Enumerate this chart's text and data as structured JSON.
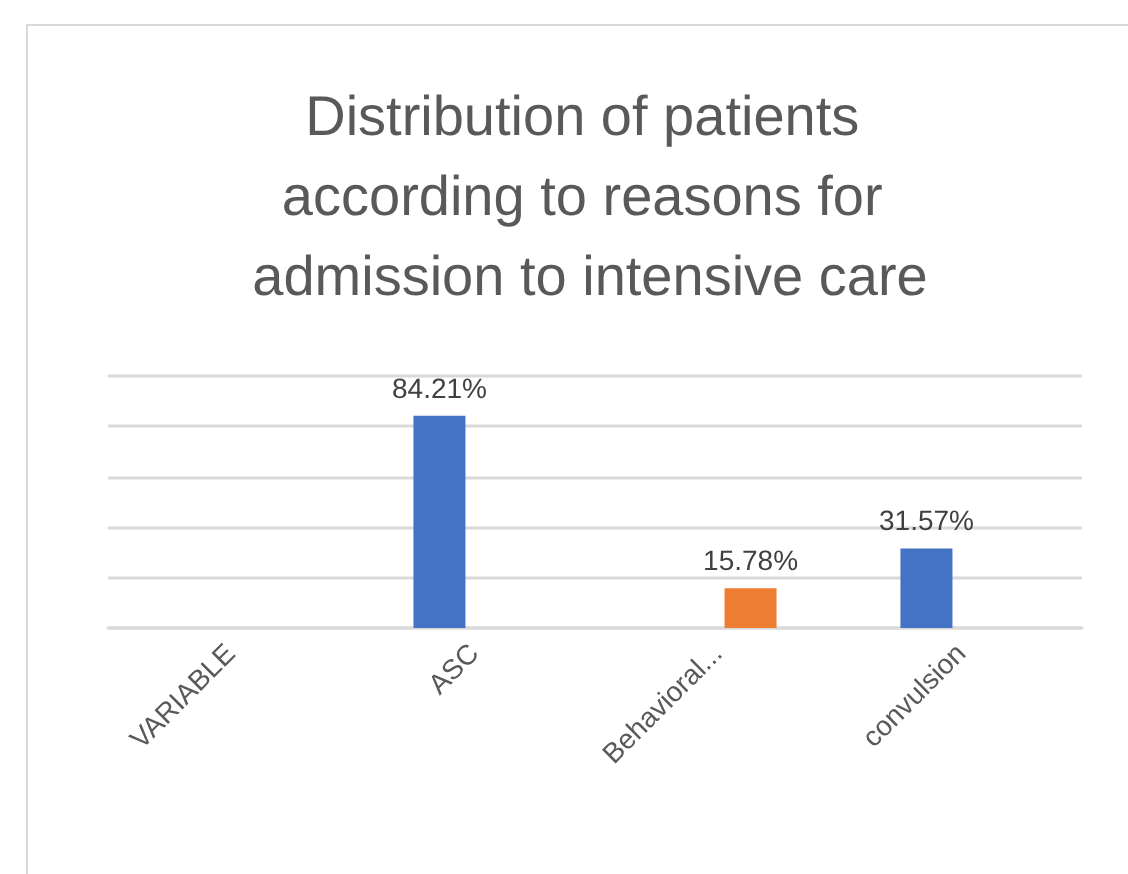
{
  "chart_data": {
    "type": "bar",
    "title": "Distribution of patients according to reasons for admission to intensive care",
    "categories": [
      "VARIABLE",
      "ASC",
      "Behavioral...",
      "convulsion"
    ],
    "series": [
      {
        "color": "#4472c4",
        "values": [
          null,
          84.21,
          null,
          31.57
        ],
        "value_labels": [
          null,
          "84.21%",
          null,
          "31.57%"
        ]
      },
      {
        "color": "#ed7d31",
        "values": [
          null,
          null,
          15.78,
          null
        ],
        "value_labels": [
          null,
          null,
          "15.78%",
          null
        ]
      }
    ],
    "ylim": [
      0,
      100
    ],
    "yticks": [
      {
        "value": 0,
        "label": null
      },
      {
        "value": 20,
        "label": null
      },
      {
        "value": 40,
        "label": null
      },
      {
        "value": 60,
        "label": null
      },
      {
        "value": 80,
        "label": null
      },
      {
        "value": 100,
        "label": null
      }
    ],
    "grid": "y",
    "tick_labels": "x"
  }
}
